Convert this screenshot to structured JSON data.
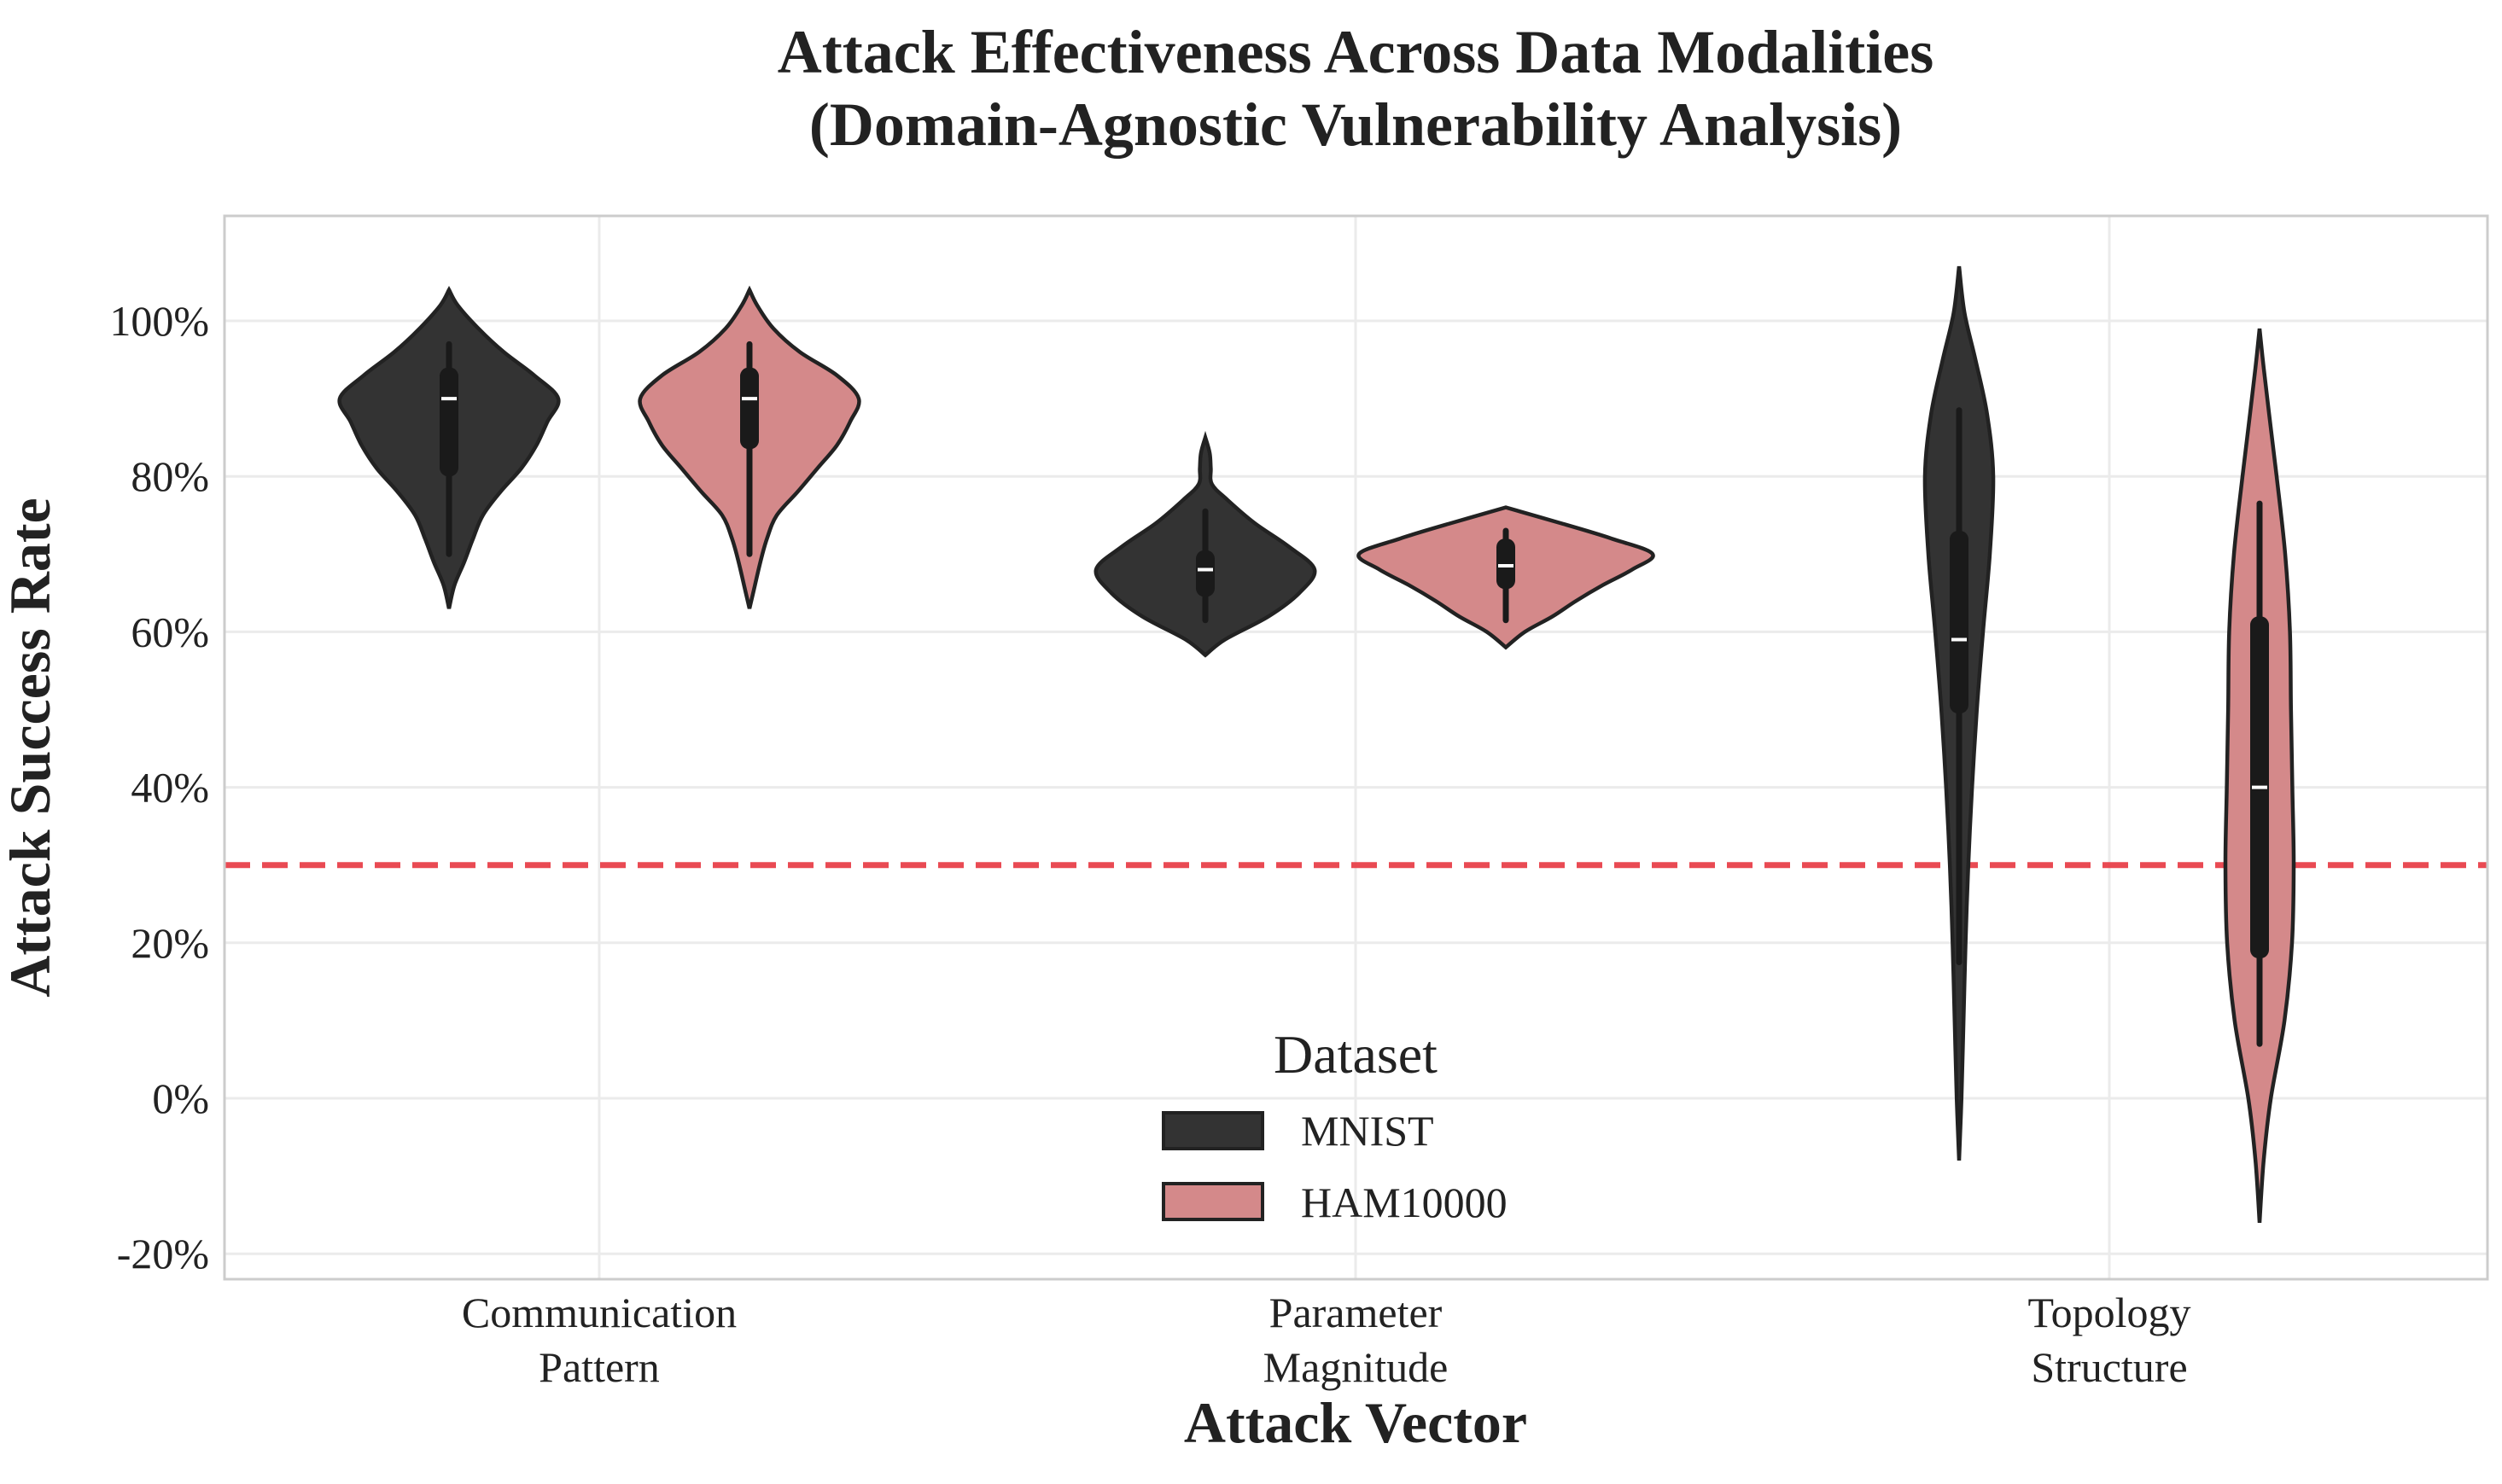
{
  "chart_data": {
    "type": "violin",
    "title": [
      "Attack Effectiveness Across Data Modalities",
      "(Domain-Agnostic Vulnerability Analysis)"
    ],
    "xlabel": "Attack Vector",
    "ylabel": "Attack Success Rate",
    "categories": [
      [
        "Communication",
        "Pattern"
      ],
      [
        "Parameter",
        "Magnitude"
      ],
      [
        "Topology",
        "Structure"
      ]
    ],
    "y_ticks": [
      -20,
      0,
      20,
      40,
      60,
      80,
      100
    ],
    "y_tick_labels": [
      "-20%",
      "0%",
      "20%",
      "40%",
      "60%",
      "80%",
      "100%"
    ],
    "ylim": [
      -23,
      113.5
    ],
    "grid": true,
    "threshold_line": {
      "value": 30,
      "color": "#e8414a",
      "style": "dashed"
    },
    "legend": {
      "title": "Dataset",
      "placement": "lower-center",
      "entries": [
        {
          "label": "MNIST",
          "color": "#333333"
        },
        {
          "label": "HAM10000",
          "color": "#d4898a"
        }
      ]
    },
    "series": [
      {
        "name": "MNIST",
        "color": "#333333",
        "stats": [
          {
            "median": 90,
            "q1": 80,
            "q3": 94,
            "whisker_low": 70,
            "whisker_high": 97
          },
          {
            "median": 68,
            "q1": 64.5,
            "q3": 70.5,
            "whisker_low": 61.5,
            "whisker_high": 75.5
          },
          {
            "median": 59,
            "q1": 49.5,
            "q3": 73,
            "whisker_low": 17.5,
            "whisker_high": 88.5
          }
        ],
        "density": [
          {
            "y": [
              63,
              66,
              69,
              72,
              75,
              78,
              81,
              84,
              87,
              90,
              93,
              96,
              99,
              102,
              104
            ],
            "w": [
              0,
              0.05,
              0.14,
              0.22,
              0.31,
              0.47,
              0.66,
              0.8,
              0.9,
              1.0,
              0.78,
              0.5,
              0.27,
              0.08,
              0
            ]
          },
          {
            "y": [
              57,
              59,
              62,
              65,
              68,
              71,
              74,
              77,
              79,
              81,
              83,
              85
            ],
            "w": [
              0,
              0.18,
              0.58,
              0.86,
              1.0,
              0.76,
              0.45,
              0.2,
              0.06,
              0.05,
              0.04,
              0
            ]
          },
          {
            "y": [
              -8,
              0,
              10,
              20,
              30,
              40,
              50,
              60,
              70,
              80,
              88,
              95,
              101,
              107
            ],
            "w": [
              0,
              0.07,
              0.13,
              0.19,
              0.27,
              0.38,
              0.52,
              0.7,
              0.9,
              1.0,
              0.82,
              0.48,
              0.16,
              0
            ]
          }
        ]
      },
      {
        "name": "HAM10000",
        "color": "#d4898a",
        "stats": [
          {
            "median": 90,
            "q1": 83.5,
            "q3": 94,
            "whisker_low": 70,
            "whisker_high": 97
          },
          {
            "median": 68.5,
            "q1": 65.5,
            "q3": 72,
            "whisker_low": 61.5,
            "whisker_high": 73
          },
          {
            "median": 40,
            "q1": 18,
            "q3": 62,
            "whisker_low": 7,
            "whisker_high": 76.5
          }
        ],
        "density": [
          {
            "y": [
              63,
              66,
              69,
              72,
              75,
              78,
              81,
              84,
              87,
              90,
              93,
              96,
              99,
              102,
              104
            ],
            "w": [
              0,
              0.05,
              0.1,
              0.16,
              0.25,
              0.44,
              0.62,
              0.8,
              0.92,
              1.0,
              0.8,
              0.46,
              0.22,
              0.07,
              0
            ]
          },
          {
            "y": [
              58,
              60,
              62,
              64,
              66,
              68,
              70,
              72,
              74,
              76
            ],
            "w": [
              0,
              0.13,
              0.32,
              0.48,
              0.66,
              0.86,
              1.0,
              0.72,
              0.37,
              0
            ]
          },
          {
            "y": [
              -16,
              -8,
              0,
              10,
              20,
              30,
              40,
              50,
              60,
              70,
              80,
              88,
              94,
              99
            ],
            "w": [
              0,
              0.12,
              0.33,
              0.73,
              0.95,
              1.0,
              0.96,
              0.92,
              0.89,
              0.75,
              0.5,
              0.28,
              0.12,
              0
            ]
          }
        ]
      }
    ]
  }
}
